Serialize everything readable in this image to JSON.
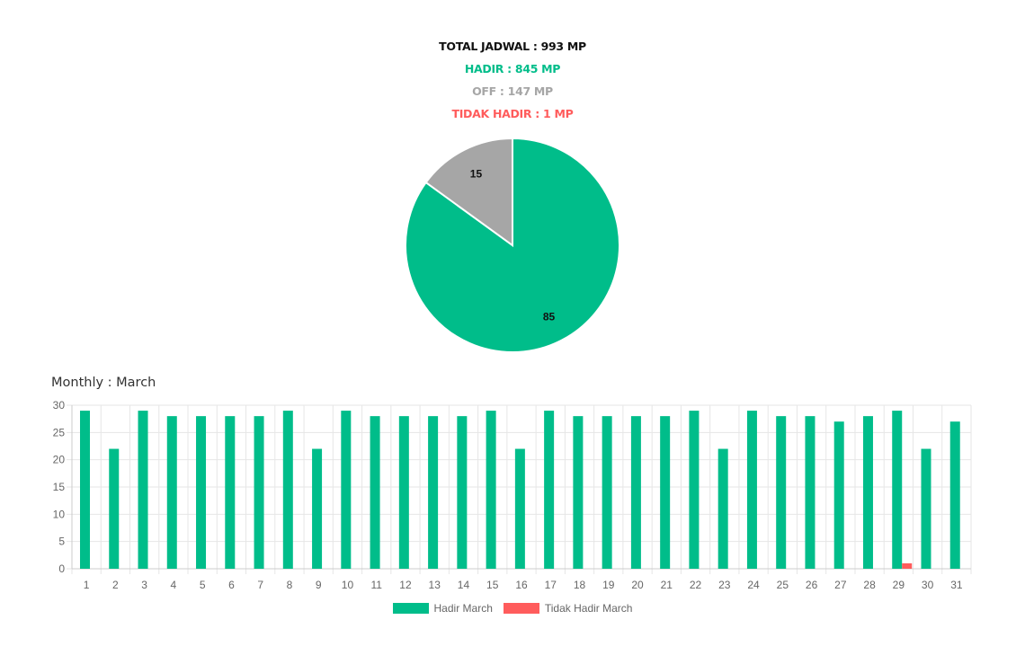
{
  "summary": {
    "total": "TOTAL JADWAL : 993 MP",
    "hadir": "HADIR : 845 MP",
    "off": "OFF : 147 MP",
    "tidak_hadir": "TIDAK HADIR : 1 MP"
  },
  "colors": {
    "hadir": "#00bd8a",
    "off": "#a6a6a6",
    "tidak_hadir": "#ff5c5c"
  },
  "monthly_title": "Monthly : March",
  "chart_data": [
    {
      "type": "pie",
      "slices": [
        {
          "key": "hadir",
          "value": 85,
          "label": "85"
        },
        {
          "key": "off",
          "value": 15,
          "label": "15"
        }
      ]
    },
    {
      "type": "bar",
      "categories": [
        "1",
        "2",
        "3",
        "4",
        "5",
        "6",
        "7",
        "8",
        "9",
        "10",
        "11",
        "12",
        "13",
        "14",
        "15",
        "16",
        "17",
        "18",
        "19",
        "20",
        "21",
        "22",
        "23",
        "24",
        "25",
        "26",
        "27",
        "28",
        "29",
        "30",
        "31"
      ],
      "series": [
        {
          "name": "Hadir March",
          "values": [
            29,
            22,
            29,
            28,
            28,
            28,
            28,
            29,
            22,
            29,
            28,
            28,
            28,
            28,
            29,
            22,
            29,
            28,
            28,
            28,
            28,
            29,
            22,
            29,
            28,
            28,
            27,
            28,
            29,
            22,
            27
          ]
        },
        {
          "name": "Tidak Hadir March",
          "values": [
            0,
            0,
            0,
            0,
            0,
            0,
            0,
            0,
            0,
            0,
            0,
            0,
            0,
            0,
            0,
            0,
            0,
            0,
            0,
            0,
            0,
            0,
            0,
            0,
            0,
            0,
            0,
            0,
            1,
            0,
            0
          ]
        }
      ],
      "ylim": [
        0,
        30
      ],
      "yticks": [
        0,
        5,
        10,
        15,
        20,
        25,
        30
      ],
      "grid": true,
      "legend": "bottom"
    }
  ]
}
